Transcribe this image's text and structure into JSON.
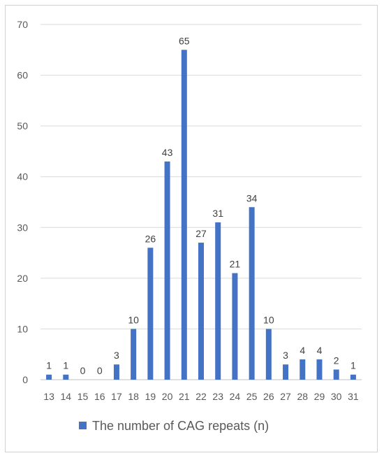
{
  "chart_data": {
    "type": "bar",
    "title": "",
    "xlabel": "",
    "ylabel": "",
    "categories": [
      "13",
      "14",
      "15",
      "16",
      "17",
      "18",
      "19",
      "20",
      "21",
      "22",
      "23",
      "24",
      "25",
      "26",
      "27",
      "28",
      "29",
      "30",
      "31"
    ],
    "series": [
      {
        "name": "The number of CAG repeats (n)",
        "values": [
          1,
          1,
          0,
          0,
          3,
          10,
          26,
          43,
          65,
          27,
          31,
          21,
          34,
          10,
          3,
          4,
          4,
          2,
          1
        ]
      }
    ],
    "ylim": [
      0,
      70
    ],
    "yticks": [
      0,
      10,
      20,
      30,
      40,
      50,
      60,
      70
    ],
    "grid": true,
    "legend": "bottom",
    "data_labels": true,
    "colors": {
      "bar": "#4472C4",
      "grid": "#d9d9d9",
      "axis": "#bfbfbf"
    }
  }
}
